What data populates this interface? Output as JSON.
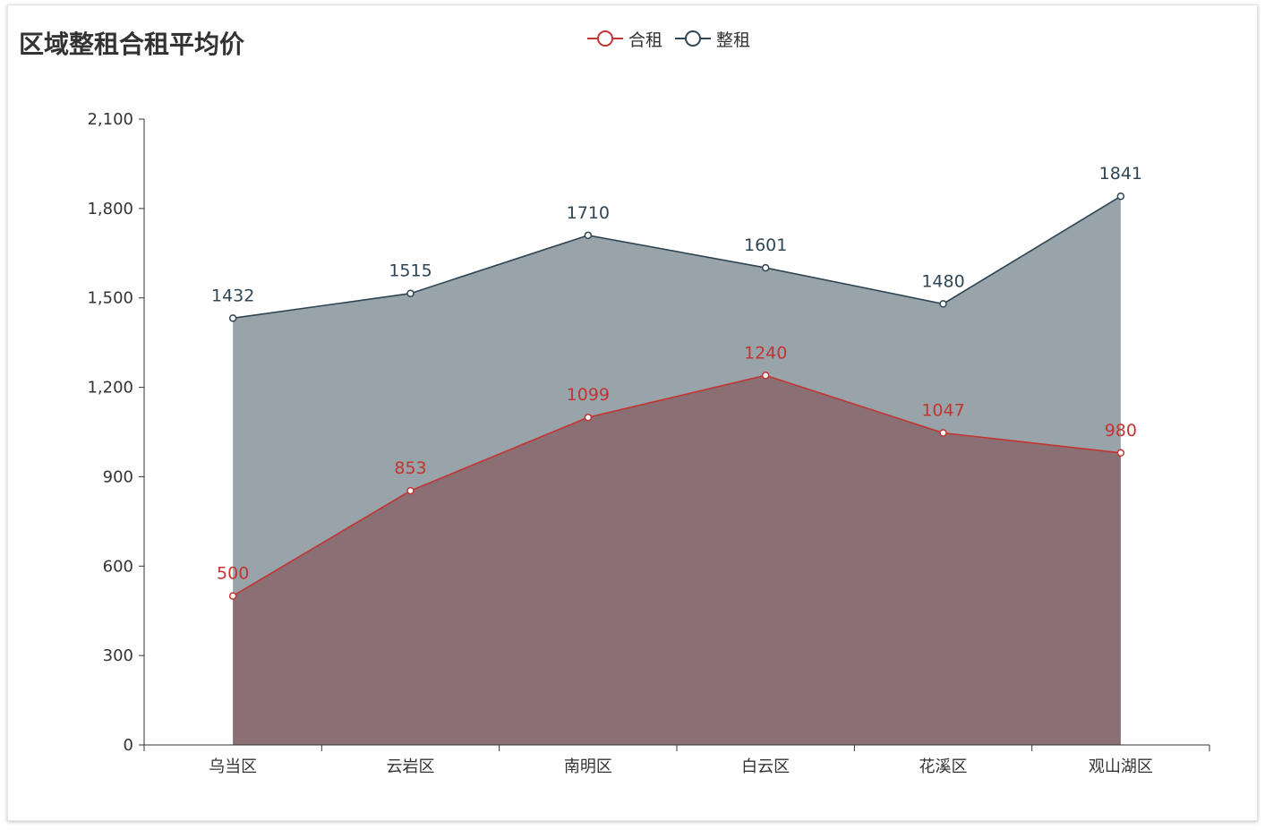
{
  "chart_data": {
    "type": "area",
    "title": "区域整租合租平均价",
    "categories": [
      "乌当区",
      "云岩区",
      "南明区",
      "白云区",
      "花溪区",
      "观山湖区"
    ],
    "series": [
      {
        "name": "合租",
        "values": [
          500,
          853,
          1099,
          1240,
          1047,
          980
        ],
        "color": "#c23531"
      },
      {
        "name": "整租",
        "values": [
          1432,
          1515,
          1710,
          1601,
          1480,
          1841
        ],
        "color": "#2f4554"
      }
    ],
    "ylim": [
      0,
      2100
    ],
    "yticks": [
      0,
      300,
      600,
      900,
      1200,
      1500,
      1800,
      2100
    ],
    "ytick_labels": [
      "0",
      "300",
      "600",
      "900",
      "1,200",
      "1,500",
      "1,800",
      "2,100"
    ],
    "legend_position": "top-center",
    "grid": false
  }
}
